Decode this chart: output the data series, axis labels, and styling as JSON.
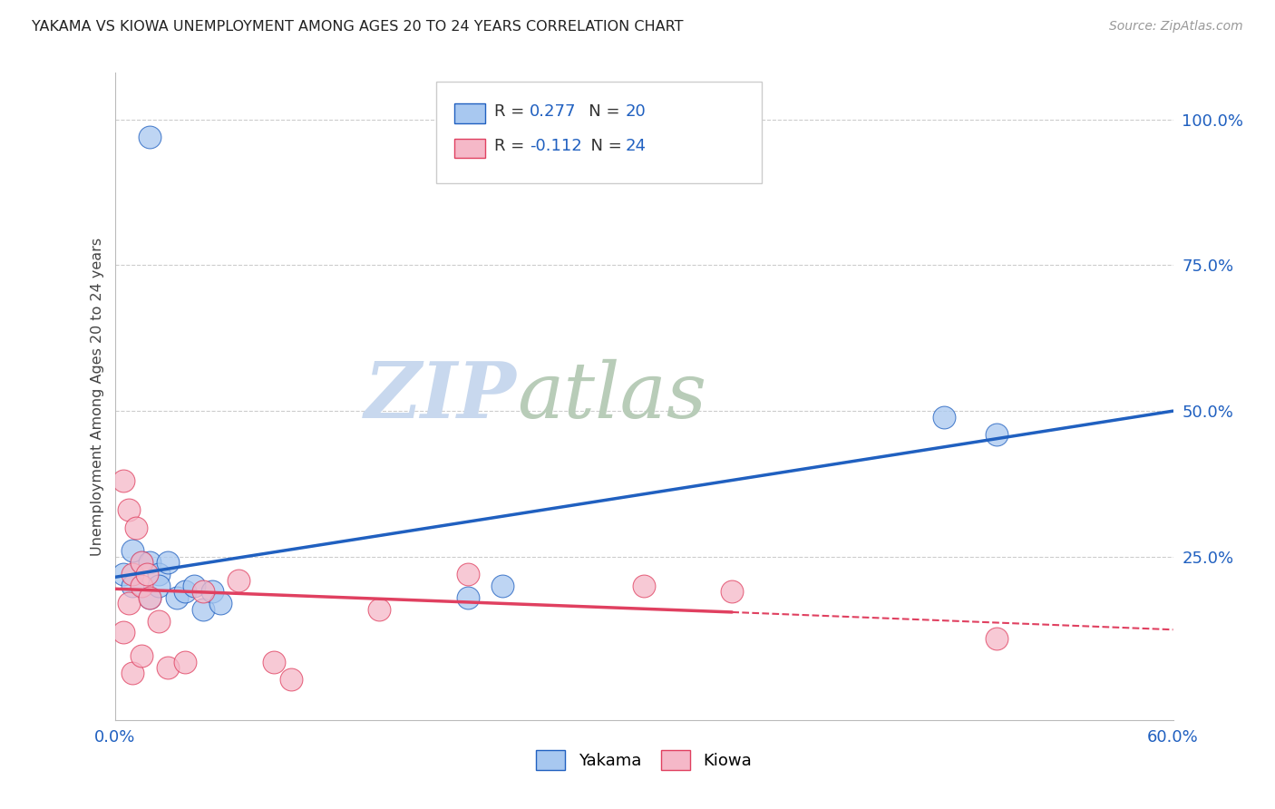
{
  "title": "YAKAMA VS KIOWA UNEMPLOYMENT AMONG AGES 20 TO 24 YEARS CORRELATION CHART",
  "source": "Source: ZipAtlas.com",
  "ylabel": "Unemployment Among Ages 20 to 24 years",
  "right_yticks": [
    "100.0%",
    "75.0%",
    "50.0%",
    "25.0%"
  ],
  "right_ytick_vals": [
    1.0,
    0.75,
    0.5,
    0.25
  ],
  "xlim": [
    0.0,
    0.6
  ],
  "ylim": [
    -0.03,
    1.08
  ],
  "yakama_R": 0.277,
  "yakama_N": 20,
  "kiowa_R": -0.112,
  "kiowa_N": 24,
  "yakama_color": "#a8c8f0",
  "kiowa_color": "#f5b8c8",
  "trend_yakama_color": "#2060c0",
  "trend_kiowa_color": "#e04060",
  "watermark_zip_color": "#c8d8ee",
  "watermark_atlas_color": "#c8d8c8",
  "yakama_x": [
    0.02,
    0.005,
    0.01,
    0.015,
    0.01,
    0.02,
    0.025,
    0.03,
    0.02,
    0.025,
    0.035,
    0.04,
    0.045,
    0.05,
    0.055,
    0.06,
    0.2,
    0.22,
    0.47,
    0.5
  ],
  "yakama_y": [
    0.97,
    0.22,
    0.2,
    0.24,
    0.26,
    0.24,
    0.22,
    0.24,
    0.18,
    0.2,
    0.18,
    0.19,
    0.2,
    0.16,
    0.19,
    0.17,
    0.18,
    0.2,
    0.49,
    0.46
  ],
  "kiowa_x": [
    0.005,
    0.008,
    0.005,
    0.01,
    0.015,
    0.01,
    0.012,
    0.015,
    0.008,
    0.015,
    0.018,
    0.02,
    0.025,
    0.03,
    0.04,
    0.05,
    0.07,
    0.09,
    0.15,
    0.2,
    0.3,
    0.35,
    0.5,
    0.1
  ],
  "kiowa_y": [
    0.38,
    0.33,
    0.12,
    0.05,
    0.08,
    0.22,
    0.3,
    0.24,
    0.17,
    0.2,
    0.22,
    0.18,
    0.14,
    0.06,
    0.07,
    0.19,
    0.21,
    0.07,
    0.16,
    0.22,
    0.2,
    0.19,
    0.11,
    0.04
  ],
  "trend_yak_x0": 0.0,
  "trend_yak_y0": 0.215,
  "trend_yak_x1": 0.6,
  "trend_yak_y1": 0.5,
  "trend_kio_x0": 0.0,
  "trend_kio_y0": 0.195,
  "trend_kio_x1": 0.35,
  "trend_kio_y1": 0.155,
  "trend_kio_dash_x0": 0.35,
  "trend_kio_dash_y0": 0.155,
  "trend_kio_dash_x1": 0.6,
  "trend_kio_dash_y1": 0.125
}
